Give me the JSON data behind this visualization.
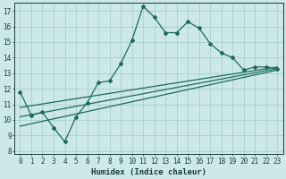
{
  "xlabel": "Humidex (Indice chaleur)",
  "ylabel": "",
  "bg_color": "#cce8e8",
  "grid_color": "#aacfcf",
  "line_color": "#1a6b5a",
  "xlim": [
    -0.5,
    23.5
  ],
  "ylim": [
    7.8,
    17.5
  ],
  "xticks": [
    0,
    1,
    2,
    3,
    4,
    5,
    6,
    7,
    8,
    9,
    10,
    11,
    12,
    13,
    14,
    15,
    16,
    17,
    18,
    19,
    20,
    21,
    22,
    23
  ],
  "yticks": [
    8,
    9,
    10,
    11,
    12,
    13,
    14,
    15,
    16,
    17
  ],
  "line1_x": [
    0,
    1,
    2,
    3,
    4,
    5,
    6,
    7,
    8,
    9,
    10,
    11,
    12,
    13,
    14,
    15,
    16,
    17,
    18,
    19,
    20,
    21,
    22,
    23
  ],
  "line1_y": [
    11.8,
    10.3,
    10.5,
    9.5,
    8.6,
    10.2,
    11.1,
    12.4,
    12.5,
    13.6,
    15.1,
    17.3,
    16.6,
    15.6,
    15.6,
    16.3,
    15.9,
    14.9,
    14.3,
    14.0,
    13.2,
    13.4,
    13.4,
    13.3
  ],
  "line2_x": [
    0,
    23
  ],
  "line2_y": [
    10.8,
    13.4
  ],
  "line3_x": [
    0,
    23
  ],
  "line3_y": [
    10.2,
    13.3
  ],
  "line4_x": [
    0,
    23
  ],
  "line4_y": [
    9.6,
    13.2
  ]
}
